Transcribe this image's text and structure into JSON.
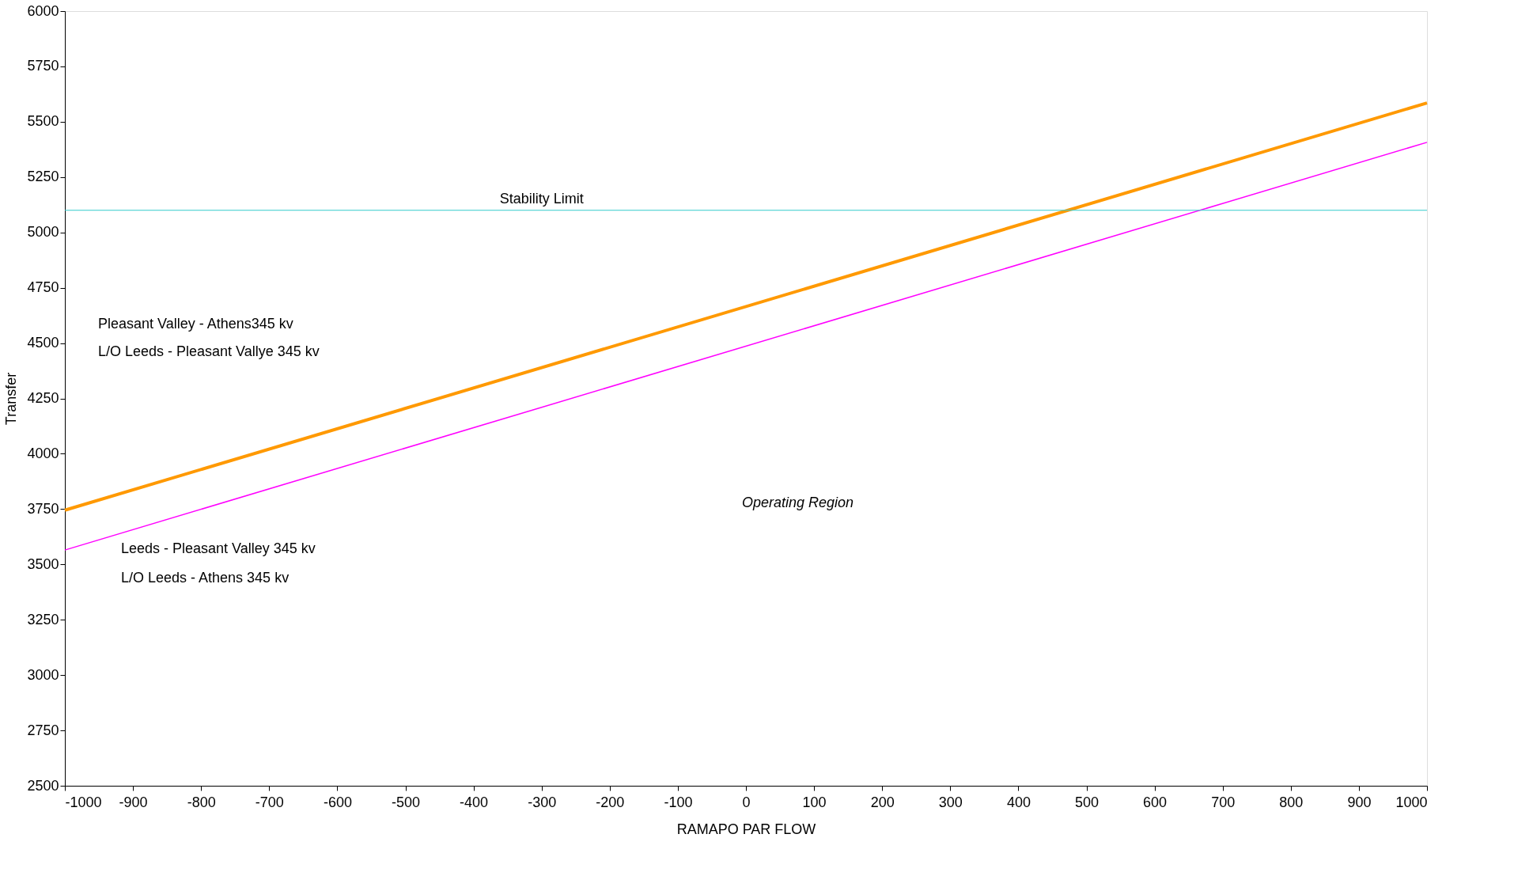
{
  "chart_data": {
    "type": "line",
    "xlabel": "RAMAPO PAR FLOW",
    "ylabel": "Transfer",
    "x": [
      -1000,
      1000
    ],
    "series": [
      {
        "color": "#ff9900",
        "values": [
          3745,
          5585
        ]
      },
      {
        "color": "#ff00ff",
        "values": [
          3565,
          5407
        ]
      }
    ],
    "xlim": [
      -1000,
      1000
    ],
    "ylim": [
      2500,
      6000
    ],
    "xticks": [
      -1000,
      -900,
      -800,
      -700,
      -600,
      -500,
      -400,
      -300,
      -200,
      -100,
      0,
      100,
      200,
      300,
      400,
      500,
      600,
      700,
      800,
      900,
      1000
    ],
    "yticks": [
      2500,
      2750,
      3000,
      3250,
      3500,
      3750,
      4000,
      4250,
      4500,
      4750,
      5000,
      5250,
      5500,
      5750,
      6000
    ],
    "ref_lines": [
      {
        "axis": "y",
        "value": 5100,
        "label": "Stability Limit",
        "color": "#33cccc"
      }
    ],
    "annotations": [
      "Pleasant Valley - Athens345 kv",
      "L/O Leeds - Pleasant Vallye 345 kv",
      "Leeds - Pleasant Valley 345 kv",
      "L/O Leeds - Athens 345 kv",
      "Operating Region"
    ],
    "grid": false,
    "marker": "none",
    "line_style": "solid"
  }
}
